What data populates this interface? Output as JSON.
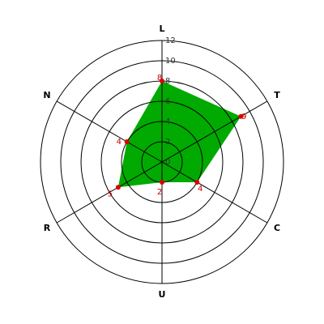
{
  "chart_data": {
    "type": "radar",
    "categories": [
      "L",
      "T",
      "C",
      "U",
      "R",
      "N"
    ],
    "values": [
      8,
      9,
      4,
      2,
      5,
      4
    ],
    "color": "#00aa00",
    "point_color": "#dd0000",
    "rlim": [
      0,
      12
    ],
    "rticks": [
      0,
      2,
      4,
      6,
      8,
      10,
      12
    ],
    "grid": true
  }
}
